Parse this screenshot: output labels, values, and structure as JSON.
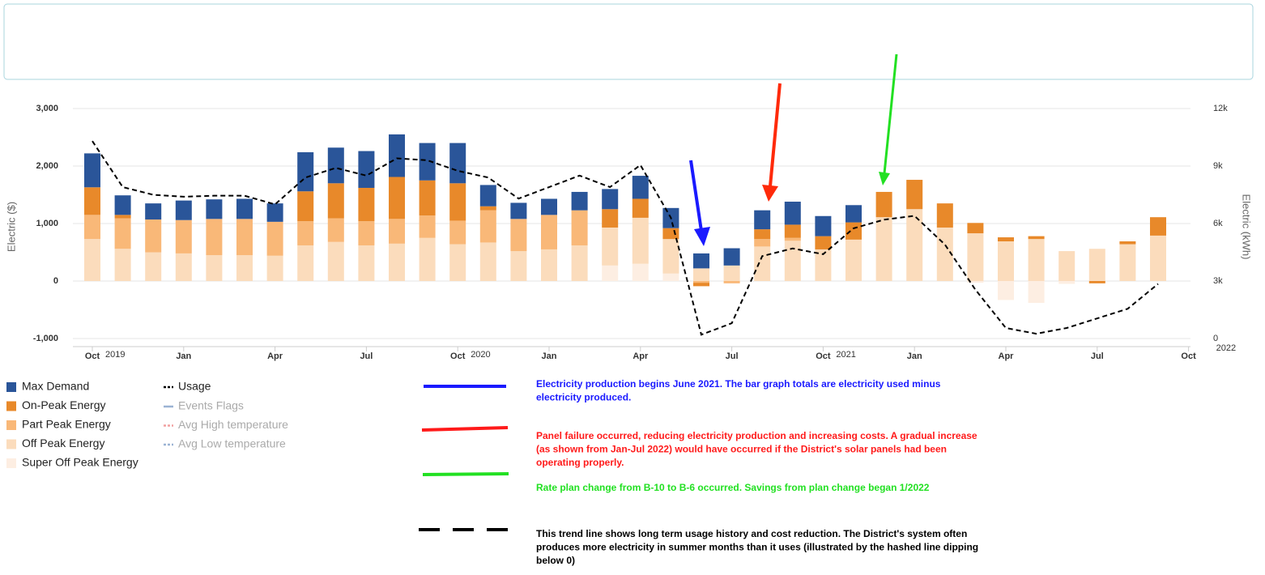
{
  "chart_data": {
    "type": "stacked-bar-line",
    "y_label": "Electric ($)",
    "y2_label": "Electric (kWh)",
    "ylim": [
      -1000,
      3000
    ],
    "yticks": [
      {
        "value": -1000,
        "label": "-1,000"
      },
      0,
      {
        "value": 1000,
        "label": "1,000"
      },
      {
        "value": 2000,
        "label": "2,000"
      },
      {
        "value": 3000,
        "label": "3,000"
      }
    ],
    "y2lim": [
      0,
      12000
    ],
    "y2ticks": [
      0,
      {
        "value": 3000,
        "label": "3k"
      },
      {
        "value": 6000,
        "label": "6k"
      },
      {
        "value": 9000,
        "label": "9k"
      },
      {
        "value": 12000,
        "label": "12k"
      }
    ],
    "grid": true,
    "categories": [
      "Oct",
      null,
      null,
      "Jan",
      null,
      null,
      "Apr",
      null,
      null,
      "Jul",
      null,
      null,
      "Oct",
      null,
      null,
      "Jan",
      null,
      null,
      "Apr",
      null,
      null,
      "Jul",
      null,
      null,
      "Oct",
      null,
      null,
      "Jan",
      null,
      null,
      "Apr",
      null,
      null,
      "Jul",
      null,
      null,
      "Oct"
    ],
    "years": [
      "2019",
      "2020",
      "2021",
      "2022"
    ],
    "series": [
      {
        "name": "Max Demand",
        "color": "#2a5599",
        "values": [
          590,
          340,
          280,
          340,
          340,
          350,
          320,
          680,
          620,
          640,
          740,
          650,
          700,
          370,
          280,
          280,
          320,
          350,
          400,
          350,
          260,
          300,
          330,
          400,
          350,
          300,
          null,
          null,
          null,
          null,
          null,
          null,
          null,
          null,
          null,
          null,
          null
        ]
      },
      {
        "name": "On-Peak Energy",
        "color": "#e8892a",
        "values": [
          480,
          60,
          null,
          null,
          null,
          null,
          null,
          520,
          610,
          580,
          730,
          610,
          650,
          70,
          null,
          null,
          null,
          320,
          330,
          190,
          -60,
          null,
          170,
          230,
          230,
          300,
          440,
          510,
          420,
          180,
          70,
          50,
          null,
          -40,
          50,
          320,
          null
        ]
      },
      {
        "name": "Part Peak Energy",
        "color": "#f9b878",
        "values": [
          420,
          530,
          570,
          580,
          630,
          630,
          590,
          420,
          410,
          420,
          430,
          390,
          410,
          560,
          560,
          600,
          610,
          null,
          null,
          null,
          -30,
          -40,
          130,
          50,
          null,
          null,
          null,
          null,
          null,
          null,
          null,
          null,
          null,
          null,
          null,
          null,
          null
        ]
      },
      {
        "name": "Off Peak Energy",
        "color": "#fbdcbc",
        "values": [
          730,
          560,
          500,
          480,
          450,
          450,
          440,
          620,
          680,
          620,
          650,
          750,
          640,
          670,
          520,
          550,
          620,
          660,
          800,
          600,
          220,
          270,
          600,
          700,
          550,
          720,
          1110,
          1250,
          930,
          830,
          690,
          730,
          520,
          560,
          640,
          790,
          null
        ]
      },
      {
        "name": "Super Off Peak Energy",
        "color": "#fdeee2",
        "values": [
          null,
          null,
          null,
          null,
          null,
          null,
          null,
          null,
          null,
          null,
          null,
          null,
          null,
          null,
          null,
          null,
          null,
          270,
          300,
          130,
          null,
          null,
          null,
          null,
          null,
          null,
          null,
          null,
          null,
          -30,
          -330,
          -380,
          -50,
          null,
          null,
          null,
          null
        ]
      },
      {
        "name": "Usage",
        "color": "#000000",
        "type": "line",
        "axis": "y2",
        "values": [
          10300,
          7900,
          7500,
          7400,
          7450,
          7450,
          7000,
          8400,
          8900,
          8500,
          9400,
          9300,
          8750,
          8400,
          7300,
          7900,
          8500,
          7900,
          9050,
          6300,
          200,
          800,
          4300,
          4700,
          4400,
          5750,
          6200,
          6400,
          4900,
          2550,
          550,
          250,
          550,
          1050,
          1550,
          2850,
          null
        ]
      }
    ],
    "inactive_legend": [
      "Events Flags",
      "Avg High temperature",
      "Avg Low temperature"
    ]
  },
  "annotations": [
    {
      "color": "#1a1aff",
      "lines": [
        "Electricity production begins June 2021. The bar graph totals are electricity used minus",
        "electricity produced."
      ]
    },
    {
      "color": "#ff1a1a",
      "lines": [
        "Panel failure occurred, reducing electricity production and increasing costs. A gradual increase",
        "(as shown from Jan-Jul 2022) would have occurred if the District's solar panels had been",
        "operating properly."
      ]
    },
    {
      "color": "#22e022",
      "lines": [
        "Rate plan change from B-10 to B-6 occurred. Savings from plan change began 1/2022"
      ]
    },
    {
      "color": "#000000",
      "lines": [
        "This trend line shows long term usage history and cost reduction. The District's system often",
        "produces more electricity in summer months than it uses (illustrated by the hashed line dipping",
        "below 0)"
      ]
    }
  ]
}
